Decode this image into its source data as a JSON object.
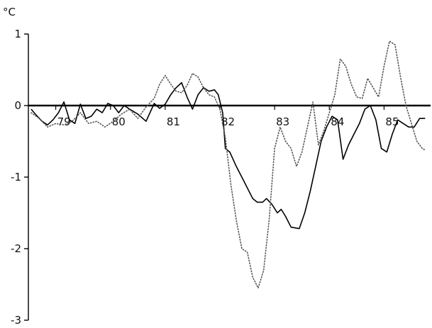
{
  "chart_data": {
    "type": "line",
    "title": "",
    "xlabel": "",
    "ylabel": "°C",
    "ylim": [
      -3,
      1
    ],
    "xlim": [
      78.5,
      85.85
    ],
    "grid": false,
    "legend": "none",
    "y_ticks": [
      {
        "value": 1,
        "label": "1"
      },
      {
        "value": 0,
        "label": "0"
      },
      {
        "value": -1,
        "label": "-1"
      },
      {
        "value": -2,
        "label": "-2"
      },
      {
        "value": -3,
        "label": "-3"
      }
    ],
    "x_ticks": [
      {
        "value": 79,
        "label": "79"
      },
      {
        "value": 80,
        "label": "80"
      },
      {
        "value": 81,
        "label": "81"
      },
      {
        "value": 82,
        "label": "82"
      },
      {
        "value": 83,
        "label": "83"
      },
      {
        "value": 84,
        "label": "84"
      },
      {
        "value": 85,
        "label": "85"
      }
    ],
    "series": [
      {
        "style": "solid",
        "color": "#000000",
        "points": [
          [
            78.55,
            -0.05
          ],
          [
            78.65,
            -0.14
          ],
          [
            78.75,
            -0.22
          ],
          [
            78.85,
            -0.27
          ],
          [
            78.95,
            -0.2
          ],
          [
            79.05,
            -0.1
          ],
          [
            79.15,
            0.05
          ],
          [
            79.25,
            -0.2
          ],
          [
            79.35,
            -0.25
          ],
          [
            79.45,
            0.02
          ],
          [
            79.55,
            -0.18
          ],
          [
            79.65,
            -0.15
          ],
          [
            79.75,
            -0.05
          ],
          [
            79.85,
            -0.1
          ],
          [
            79.95,
            0.03
          ],
          [
            80.05,
            0.0
          ],
          [
            80.15,
            -0.1
          ],
          [
            80.25,
            0.0
          ],
          [
            80.35,
            -0.05
          ],
          [
            80.5,
            -0.12
          ],
          [
            80.65,
            -0.22
          ],
          [
            80.8,
            0.03
          ],
          [
            80.9,
            -0.04
          ],
          [
            81.0,
            0.02
          ],
          [
            81.1,
            0.15
          ],
          [
            81.2,
            0.25
          ],
          [
            81.3,
            0.32
          ],
          [
            81.4,
            0.12
          ],
          [
            81.5,
            -0.05
          ],
          [
            81.6,
            0.15
          ],
          [
            81.7,
            0.25
          ],
          [
            81.8,
            0.2
          ],
          [
            81.9,
            0.22
          ],
          [
            81.97,
            0.15
          ],
          [
            82.05,
            -0.1
          ],
          [
            82.1,
            -0.6
          ],
          [
            82.18,
            -0.65
          ],
          [
            82.3,
            -0.85
          ],
          [
            82.4,
            -1.0
          ],
          [
            82.5,
            -1.15
          ],
          [
            82.6,
            -1.3
          ],
          [
            82.68,
            -1.35
          ],
          [
            82.78,
            -1.35
          ],
          [
            82.85,
            -1.3
          ],
          [
            82.95,
            -1.38
          ],
          [
            83.05,
            -1.5
          ],
          [
            83.12,
            -1.45
          ],
          [
            83.2,
            -1.55
          ],
          [
            83.3,
            -1.7
          ],
          [
            83.45,
            -1.72
          ],
          [
            83.55,
            -1.5
          ],
          [
            83.65,
            -1.2
          ],
          [
            83.75,
            -0.85
          ],
          [
            83.85,
            -0.5
          ],
          [
            83.95,
            -0.3
          ],
          [
            84.05,
            -0.15
          ],
          [
            84.15,
            -0.2
          ],
          [
            84.25,
            -0.75
          ],
          [
            84.35,
            -0.55
          ],
          [
            84.45,
            -0.4
          ],
          [
            84.55,
            -0.25
          ],
          [
            84.65,
            -0.05
          ],
          [
            84.75,
            0.0
          ],
          [
            84.85,
            -0.2
          ],
          [
            84.95,
            -0.6
          ],
          [
            85.05,
            -0.65
          ],
          [
            85.15,
            -0.4
          ],
          [
            85.25,
            -0.2
          ],
          [
            85.35,
            -0.25
          ],
          [
            85.45,
            -0.3
          ],
          [
            85.55,
            -0.3
          ],
          [
            85.65,
            -0.18
          ],
          [
            85.75,
            -0.18
          ]
        ]
      },
      {
        "style": "dotted",
        "color": "#555555",
        "points": [
          [
            78.55,
            -0.1
          ],
          [
            78.7,
            -0.18
          ],
          [
            78.85,
            -0.3
          ],
          [
            79.0,
            -0.25
          ],
          [
            79.15,
            -0.27
          ],
          [
            79.3,
            -0.22
          ],
          [
            79.45,
            -0.1
          ],
          [
            79.6,
            -0.25
          ],
          [
            79.75,
            -0.22
          ],
          [
            79.9,
            -0.3
          ],
          [
            80.05,
            -0.22
          ],
          [
            80.2,
            -0.12
          ],
          [
            80.35,
            -0.05
          ],
          [
            80.5,
            -0.18
          ],
          [
            80.65,
            -0.02
          ],
          [
            80.8,
            0.1
          ],
          [
            80.9,
            0.3
          ],
          [
            81.0,
            0.42
          ],
          [
            81.1,
            0.3
          ],
          [
            81.2,
            0.2
          ],
          [
            81.3,
            0.18
          ],
          [
            81.4,
            0.28
          ],
          [
            81.5,
            0.45
          ],
          [
            81.6,
            0.4
          ],
          [
            81.7,
            0.25
          ],
          [
            81.8,
            0.15
          ],
          [
            81.9,
            0.12
          ],
          [
            82.0,
            -0.05
          ],
          [
            82.1,
            -0.45
          ],
          [
            82.2,
            -1.1
          ],
          [
            82.3,
            -1.6
          ],
          [
            82.4,
            -2.0
          ],
          [
            82.5,
            -2.05
          ],
          [
            82.6,
            -2.4
          ],
          [
            82.7,
            -2.55
          ],
          [
            82.8,
            -2.3
          ],
          [
            82.9,
            -1.6
          ],
          [
            83.0,
            -0.6
          ],
          [
            83.1,
            -0.3
          ],
          [
            83.2,
            -0.5
          ],
          [
            83.3,
            -0.6
          ],
          [
            83.4,
            -0.85
          ],
          [
            83.5,
            -0.65
          ],
          [
            83.6,
            -0.3
          ],
          [
            83.7,
            0.05
          ],
          [
            83.8,
            -0.55
          ],
          [
            83.9,
            -0.35
          ],
          [
            84.0,
            -0.1
          ],
          [
            84.1,
            0.15
          ],
          [
            84.2,
            0.65
          ],
          [
            84.3,
            0.55
          ],
          [
            84.4,
            0.3
          ],
          [
            84.5,
            0.12
          ],
          [
            84.6,
            0.1
          ],
          [
            84.7,
            0.38
          ],
          [
            84.8,
            0.25
          ],
          [
            84.9,
            0.12
          ],
          [
            85.0,
            0.55
          ],
          [
            85.1,
            0.9
          ],
          [
            85.2,
            0.85
          ],
          [
            85.3,
            0.4
          ],
          [
            85.4,
            0.0
          ],
          [
            85.5,
            -0.25
          ],
          [
            85.6,
            -0.5
          ],
          [
            85.7,
            -0.6
          ],
          [
            85.75,
            -0.62
          ]
        ]
      }
    ]
  }
}
